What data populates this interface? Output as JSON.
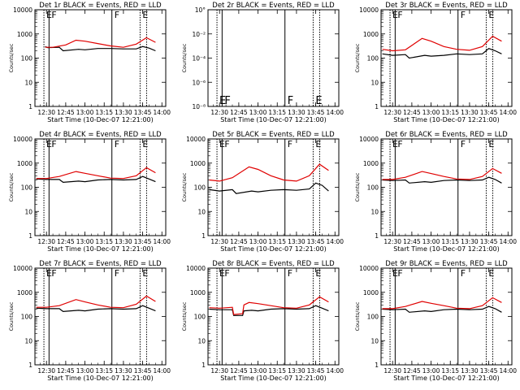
{
  "figure": {
    "xlabel": "Start Time (10-Dec-07 12:21:00)",
    "ylabel": "Counts/sec",
    "x_ticks": [
      "12:30",
      "12:45",
      "13:00",
      "13:15",
      "13:30",
      "13:45",
      "14:00"
    ],
    "y_ticks_log": [
      "1",
      "10",
      "100",
      "1000",
      "10000"
    ],
    "y_ticks_empty": [
      "10°",
      "10⁻²",
      "10⁻⁴",
      "10⁻⁶",
      "10⁻⁸"
    ],
    "colors": {
      "events": "#000000",
      "lld": "#e00000",
      "frame": "#000000"
    }
  },
  "chart_data": [
    {
      "title": "Det 1r BLACK = Events, RED = LLD",
      "type": "line",
      "yscale": "log",
      "ylim": [
        1,
        10000
      ],
      "markers": [
        {
          "label": "E",
          "time": "12:28"
        },
        {
          "label": "F",
          "time": "12:32"
        },
        {
          "label": "F",
          "time": "13:21"
        },
        {
          "label": "E",
          "time": "13:43"
        }
      ],
      "series": [
        {
          "name": "Events",
          "x": [
            "12:29",
            "12:31",
            "12:40",
            "12:43",
            "12:55",
            "13:00",
            "13:10",
            "13:20",
            "13:30",
            "13:40",
            "13:45",
            "13:50",
            "13:55"
          ],
          "values": [
            300,
            270,
            280,
            200,
            230,
            220,
            250,
            250,
            240,
            240,
            300,
            260,
            200
          ]
        },
        {
          "name": "LLD",
          "x": [
            "12:29",
            "12:35",
            "12:45",
            "12:53",
            "13:00",
            "13:10",
            "13:20",
            "13:30",
            "13:40",
            "13:48",
            "13:55"
          ],
          "values": [
            280,
            280,
            350,
            550,
            500,
            400,
            320,
            280,
            380,
            700,
            450
          ]
        }
      ]
    },
    {
      "title": "Det 2r BLACK = Events, RED = LLD",
      "type": "line",
      "yscale": "log",
      "ylim": [
        1e-08,
        1
      ],
      "markers": [
        {
          "label": "E",
          "time": "12:28"
        },
        {
          "label": "F",
          "time": "12:32"
        },
        {
          "label": "F",
          "time": "13:21"
        },
        {
          "label": "E",
          "time": "13:43"
        }
      ],
      "series": []
    },
    {
      "title": "Det 3r BLACK = Events, RED = LLD",
      "type": "line",
      "yscale": "log",
      "ylim": [
        1,
        10000
      ],
      "markers": [
        {
          "label": "E",
          "time": "12:28"
        },
        {
          "label": "F",
          "time": "12:32"
        },
        {
          "label": "F",
          "time": "13:21"
        },
        {
          "label": "E",
          "time": "13:43"
        }
      ],
      "series": [
        {
          "name": "Events",
          "x": [
            "12:22",
            "12:30",
            "12:40",
            "12:43",
            "12:55",
            "13:00",
            "13:10",
            "13:20",
            "13:30",
            "13:40",
            "13:45",
            "13:50",
            "13:55"
          ],
          "values": [
            150,
            130,
            140,
            100,
            130,
            120,
            130,
            150,
            140,
            150,
            250,
            200,
            150
          ]
        },
        {
          "name": "LLD",
          "x": [
            "12:22",
            "12:30",
            "12:40",
            "12:53",
            "13:00",
            "13:10",
            "13:20",
            "13:30",
            "13:40",
            "13:48",
            "13:55"
          ],
          "values": [
            230,
            200,
            220,
            650,
            500,
            300,
            230,
            210,
            300,
            800,
            500
          ]
        }
      ]
    },
    {
      "title": "Det 4r BLACK = Events, RED = LLD",
      "type": "line",
      "yscale": "log",
      "ylim": [
        1,
        10000
      ],
      "markers": [
        {
          "label": "E",
          "time": "12:28"
        },
        {
          "label": "F",
          "time": "12:32"
        },
        {
          "label": "F",
          "time": "13:21"
        },
        {
          "label": "E",
          "time": "13:43"
        }
      ],
      "series": [
        {
          "name": "Events",
          "x": [
            "12:22",
            "12:30",
            "12:40",
            "12:43",
            "12:55",
            "13:00",
            "13:10",
            "13:20",
            "13:30",
            "13:40",
            "13:45",
            "13:50",
            "13:55"
          ],
          "values": [
            220,
            210,
            210,
            160,
            180,
            170,
            200,
            210,
            200,
            210,
            280,
            220,
            170
          ]
        },
        {
          "name": "LLD",
          "x": [
            "12:22",
            "12:30",
            "12:40",
            "12:53",
            "13:00",
            "13:10",
            "13:20",
            "13:30",
            "13:40",
            "13:48",
            "13:55"
          ],
          "values": [
            230,
            230,
            280,
            450,
            380,
            300,
            240,
            230,
            300,
            650,
            400
          ]
        }
      ]
    },
    {
      "title": "Det 5r BLACK = Events, RED = LLD",
      "type": "line",
      "yscale": "log",
      "ylim": [
        1,
        10000
      ],
      "markers": [
        {
          "label": "E",
          "time": "12:28"
        },
        {
          "label": "F",
          "time": "12:32"
        },
        {
          "label": "F",
          "time": "13:21"
        },
        {
          "label": "E",
          "time": "13:43"
        }
      ],
      "series": [
        {
          "name": "Events",
          "x": [
            "12:22",
            "12:30",
            "12:40",
            "12:43",
            "12:55",
            "13:00",
            "13:10",
            "13:20",
            "13:30",
            "13:40",
            "13:45",
            "13:50",
            "13:55"
          ],
          "values": [
            80,
            70,
            80,
            55,
            70,
            65,
            75,
            80,
            75,
            85,
            150,
            120,
            70
          ]
        },
        {
          "name": "LLD",
          "x": [
            "12:22",
            "12:30",
            "12:40",
            "12:53",
            "13:00",
            "13:10",
            "13:20",
            "13:30",
            "13:40",
            "13:48",
            "13:55"
          ],
          "values": [
            200,
            180,
            250,
            700,
            550,
            300,
            200,
            180,
            300,
            900,
            500
          ]
        }
      ]
    },
    {
      "title": "Det 6r BLACK = Events, RED = LLD",
      "type": "line",
      "yscale": "log",
      "ylim": [
        1,
        10000
      ],
      "markers": [
        {
          "label": "E",
          "time": "12:28"
        },
        {
          "label": "F",
          "time": "12:32"
        },
        {
          "label": "F",
          "time": "13:21"
        },
        {
          "label": "E",
          "time": "13:43"
        }
      ],
      "series": [
        {
          "name": "Events",
          "x": [
            "12:22",
            "12:30",
            "12:40",
            "12:43",
            "12:55",
            "13:00",
            "13:10",
            "13:20",
            "13:30",
            "13:40",
            "13:45",
            "13:50",
            "13:55"
          ],
          "values": [
            200,
            190,
            200,
            150,
            170,
            160,
            190,
            200,
            190,
            200,
            260,
            210,
            150
          ]
        },
        {
          "name": "LLD",
          "x": [
            "12:22",
            "12:30",
            "12:40",
            "12:53",
            "13:00",
            "13:10",
            "13:20",
            "13:30",
            "13:40",
            "13:48",
            "13:55"
          ],
          "values": [
            210,
            210,
            260,
            450,
            370,
            280,
            220,
            210,
            280,
            600,
            380
          ]
        }
      ]
    },
    {
      "title": "Det 7r BLACK = Events, RED = LLD",
      "type": "line",
      "yscale": "log",
      "ylim": [
        1,
        10000
      ],
      "markers": [
        {
          "label": "E",
          "time": "12:28"
        },
        {
          "label": "F",
          "time": "12:32"
        },
        {
          "label": "F",
          "time": "13:21"
        },
        {
          "label": "E",
          "time": "13:43"
        }
      ],
      "series": [
        {
          "name": "Events",
          "x": [
            "12:22",
            "12:30",
            "12:40",
            "12:43",
            "12:55",
            "13:00",
            "13:10",
            "13:20",
            "13:30",
            "13:40",
            "13:45",
            "13:50",
            "13:55"
          ],
          "values": [
            220,
            210,
            210,
            160,
            180,
            170,
            200,
            210,
            200,
            210,
            280,
            220,
            170
          ]
        },
        {
          "name": "LLD",
          "x": [
            "12:22",
            "12:30",
            "12:40",
            "12:53",
            "13:00",
            "13:10",
            "13:20",
            "13:30",
            "13:40",
            "13:48",
            "13:55"
          ],
          "values": [
            240,
            240,
            280,
            500,
            400,
            300,
            240,
            230,
            320,
            700,
            420
          ]
        }
      ]
    },
    {
      "title": "Det 8r BLACK = Events, RED = LLD",
      "type": "line",
      "yscale": "log",
      "ylim": [
        1,
        10000
      ],
      "markers": [
        {
          "label": "E",
          "time": "12:28"
        },
        {
          "label": "F",
          "time": "12:32"
        },
        {
          "label": "F",
          "time": "13:21"
        },
        {
          "label": "E",
          "time": "13:43"
        }
      ],
      "series": [
        {
          "name": "Events",
          "x": [
            "12:22",
            "12:30",
            "12:40",
            "12:41",
            "12:48",
            "12:49",
            "12:55",
            "13:00",
            "13:10",
            "13:20",
            "13:30",
            "13:40",
            "13:45",
            "13:50",
            "13:55"
          ],
          "values": [
            200,
            190,
            190,
            110,
            110,
            170,
            180,
            170,
            200,
            210,
            200,
            210,
            280,
            220,
            170
          ]
        },
        {
          "name": "LLD",
          "x": [
            "12:22",
            "12:30",
            "12:40",
            "12:41",
            "12:48",
            "12:49",
            "12:53",
            "13:00",
            "13:10",
            "13:20",
            "13:30",
            "13:40",
            "13:48",
            "13:55"
          ],
          "values": [
            230,
            220,
            240,
            120,
            130,
            300,
            380,
            340,
            280,
            230,
            220,
            300,
            650,
            400
          ]
        }
      ]
    },
    {
      "title": "Det 9r BLACK = Events, RED = LLD",
      "type": "line",
      "yscale": "log",
      "ylim": [
        1,
        10000
      ],
      "markers": [
        {
          "label": "E",
          "time": "12:28"
        },
        {
          "label": "F",
          "time": "12:32"
        },
        {
          "label": "F",
          "time": "13:21"
        },
        {
          "label": "E",
          "time": "13:43"
        }
      ],
      "series": [
        {
          "name": "Events",
          "x": [
            "12:22",
            "12:30",
            "12:40",
            "12:43",
            "12:55",
            "13:00",
            "13:10",
            "13:20",
            "13:30",
            "13:40",
            "13:45",
            "13:50",
            "13:55"
          ],
          "values": [
            200,
            190,
            200,
            150,
            170,
            160,
            190,
            200,
            190,
            200,
            260,
            210,
            150
          ]
        },
        {
          "name": "LLD",
          "x": [
            "12:22",
            "12:30",
            "12:40",
            "12:53",
            "13:00",
            "13:10",
            "13:20",
            "13:30",
            "13:40",
            "13:48",
            "13:55"
          ],
          "values": [
            210,
            210,
            260,
            420,
            350,
            280,
            220,
            210,
            280,
            600,
            380
          ]
        }
      ]
    }
  ]
}
